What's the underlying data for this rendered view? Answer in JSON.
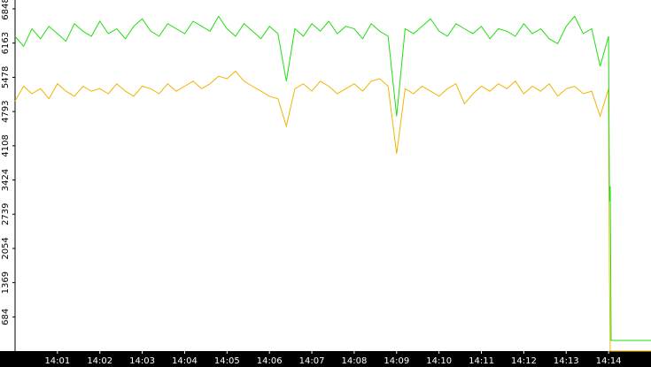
{
  "chart_data": {
    "type": "line",
    "x": [
      0,
      0.2,
      0.4,
      0.6,
      0.8,
      1,
      1.2,
      1.4,
      1.6,
      1.8,
      2,
      2.2,
      2.4,
      2.6,
      2.8,
      3,
      3.2,
      3.4,
      3.6,
      3.8,
      4,
      4.2,
      4.4,
      4.6,
      4.8,
      5,
      5.2,
      5.4,
      5.6,
      5.8,
      6,
      6.2,
      6.4,
      6.6,
      6.8,
      7,
      7.2,
      7.4,
      7.6,
      7.8,
      8,
      8.2,
      8.4,
      8.6,
      8.8,
      9,
      9.2,
      9.4,
      9.6,
      9.8,
      10,
      10.2,
      10.4,
      10.6,
      10.8,
      11,
      11.2,
      11.4,
      11.6,
      11.8,
      12,
      12.2,
      12.4,
      12.6,
      12.8,
      13,
      13.2,
      13.4,
      13.6,
      13.8,
      14,
      14.02,
      14.04,
      14.06,
      15
    ],
    "series": [
      {
        "color": "#f0b400",
        "values": [
          5000,
          5300,
          5150,
          5250,
          5050,
          5350,
          5200,
          5100,
          5300,
          5200,
          5250,
          5150,
          5350,
          5200,
          5100,
          5300,
          5250,
          5150,
          5350,
          5200,
          5300,
          5400,
          5250,
          5350,
          5500,
          5450,
          5600,
          5400,
          5300,
          5200,
          5100,
          5050,
          4500,
          5250,
          5350,
          5200,
          5400,
          5300,
          5150,
          5250,
          5350,
          5200,
          5400,
          5450,
          5300,
          3950,
          5250,
          5150,
          5300,
          5200,
          5100,
          5250,
          5350,
          4950,
          5150,
          5300,
          5200,
          5350,
          5250,
          5400,
          5150,
          5300,
          5200,
          5350,
          5100,
          5250,
          5300,
          5150,
          5200,
          4700,
          5250,
          1500,
          0,
          0,
          0
        ]
      },
      {
        "color": "#22dd11",
        "values": [
          6300,
          6100,
          6450,
          6250,
          6500,
          6350,
          6200,
          6550,
          6400,
          6300,
          6600,
          6350,
          6450,
          6250,
          6500,
          6650,
          6400,
          6300,
          6550,
          6450,
          6350,
          6600,
          6500,
          6400,
          6700,
          6450,
          6300,
          6550,
          6400,
          6250,
          6500,
          6350,
          5400,
          6450,
          6300,
          6550,
          6400,
          6600,
          6350,
          6500,
          6450,
          6250,
          6550,
          6400,
          6300,
          4700,
          6450,
          6350,
          6500,
          6650,
          6400,
          6300,
          6550,
          6450,
          6350,
          6500,
          6250,
          6450,
          6400,
          6300,
          6550,
          6350,
          6450,
          6250,
          6150,
          6500,
          6700,
          6350,
          6450,
          5700,
          6300,
          3000,
          3300,
          212,
          212
        ]
      }
    ],
    "xlim": [
      0,
      15
    ],
    "xticks": [
      {
        "value": 1,
        "label": "14:01"
      },
      {
        "value": 2,
        "label": "14:02"
      },
      {
        "value": 3,
        "label": "14:03"
      },
      {
        "value": 4,
        "label": "14:04"
      },
      {
        "value": 5,
        "label": "14:05"
      },
      {
        "value": 6,
        "label": "14:06"
      },
      {
        "value": 7,
        "label": "14:07"
      },
      {
        "value": 8,
        "label": "14:08"
      },
      {
        "value": 9,
        "label": "14:09"
      },
      {
        "value": 10,
        "label": "14:10"
      },
      {
        "value": 11,
        "label": "14:11"
      },
      {
        "value": 12,
        "label": "14:12"
      },
      {
        "value": 13,
        "label": "14:13"
      },
      {
        "value": 14,
        "label": "14:14"
      }
    ],
    "ylim": [
      0,
      7025
    ],
    "yticks": [
      684,
      1369,
      2054,
      2739,
      3424,
      4108,
      4793,
      5478,
      6163,
      6848
    ]
  }
}
